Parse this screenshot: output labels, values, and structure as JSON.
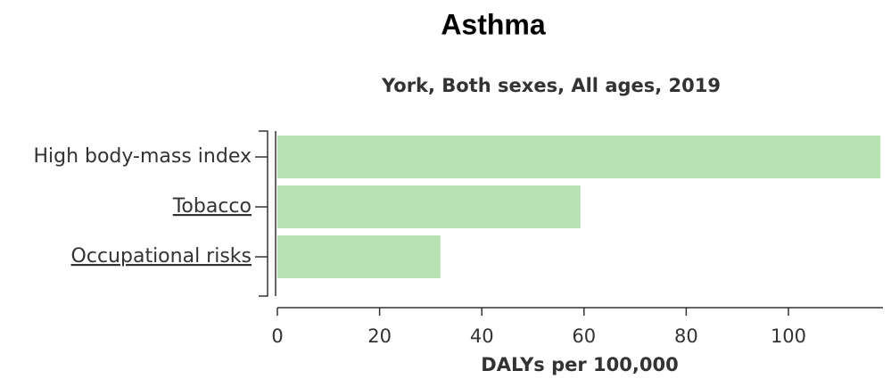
{
  "chart_data": {
    "type": "bar",
    "title": "Asthma",
    "subtitle": "York, Both sexes, All ages, 2019",
    "categories": [
      "High body-mass index",
      "Tobacco",
      "Occupational risks"
    ],
    "values": [
      118,
      59.3,
      31.9
    ],
    "color": "#b9e2b4",
    "xlabel": "DALYs per 100,000",
    "xlim": [
      0,
      118.5
    ],
    "xticks": [
      0,
      20,
      40,
      60,
      80,
      100
    ],
    "grid": false
  }
}
